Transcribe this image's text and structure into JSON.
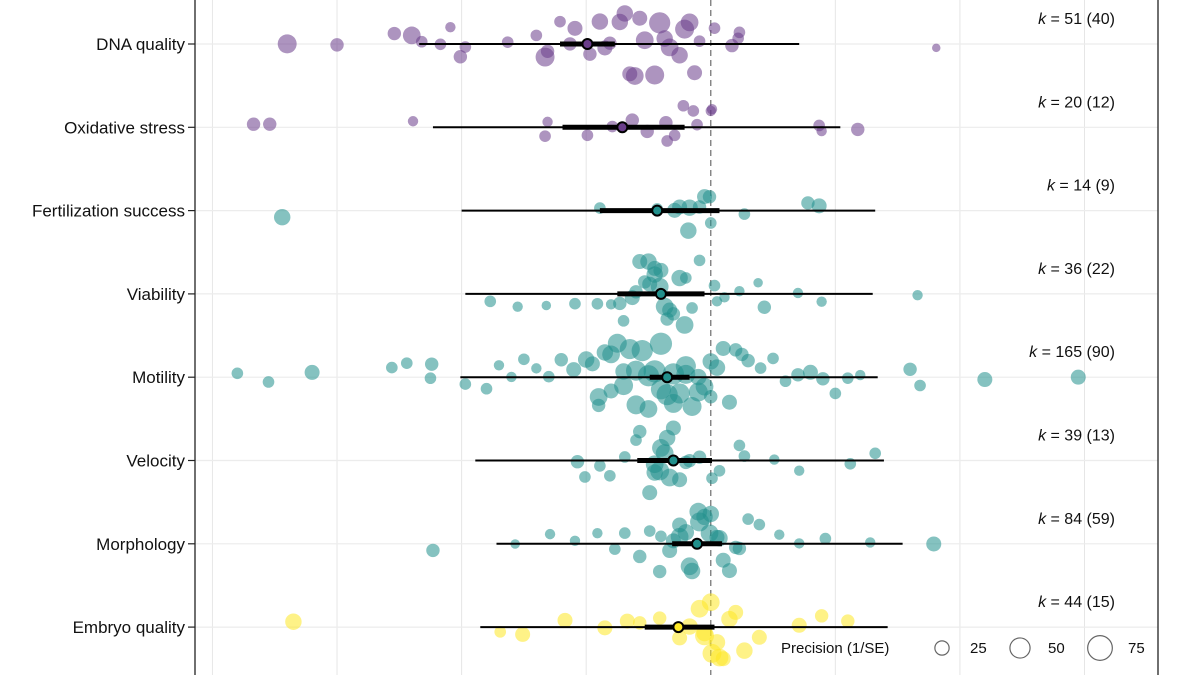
{
  "chart_data": {
    "type": "scatter",
    "subtype": "orchard",
    "title": "",
    "xlabel": "",
    "ylabel": "",
    "xlim": [
      -4.14,
      3.59
    ],
    "grid": true,
    "reference_line": 0,
    "legend": {
      "title": "Precision (1/SE)",
      "values": [
        25,
        50,
        75
      ],
      "placement": "bottom-right"
    },
    "colors": {
      "purple": "#6a3d8a",
      "teal": "#21908c",
      "yellow": "#fde725"
    },
    "groups": [
      {
        "name": "DNA quality",
        "k_label": "k = 51 (40)",
        "k": "k",
        "k_rest": " = 51 (40)",
        "color": "#6a3d8a",
        "estimate": -0.99,
        "ci": [
          -1.21,
          -0.77
        ],
        "pi": [
          -2.34,
          0.71
        ],
        "points": [
          [
            -3.4,
            40
          ],
          [
            -3.0,
            20
          ],
          [
            -2.54,
            20
          ],
          [
            -2.4,
            35
          ],
          [
            -2.32,
            15
          ],
          [
            -2.17,
            15
          ],
          [
            -2.09,
            12
          ],
          [
            -2.01,
            20
          ],
          [
            -1.97,
            15
          ],
          [
            -1.63,
            15
          ],
          [
            -1.4,
            15
          ],
          [
            -1.33,
            40
          ],
          [
            -1.31,
            20
          ],
          [
            -1.21,
            15
          ],
          [
            -1.13,
            20
          ],
          [
            -1.09,
            25
          ],
          [
            -0.97,
            20
          ],
          [
            -0.89,
            30
          ],
          [
            -0.85,
            25
          ],
          [
            -0.81,
            20
          ],
          [
            -0.73,
            30
          ],
          [
            -0.69,
            30
          ],
          [
            -0.65,
            25
          ],
          [
            -0.61,
            35
          ],
          [
            -0.57,
            25
          ],
          [
            -0.53,
            35
          ],
          [
            -0.45,
            40
          ],
          [
            -0.41,
            50
          ],
          [
            -0.37,
            30
          ],
          [
            -0.33,
            35
          ],
          [
            -0.25,
            30
          ],
          [
            -0.21,
            40
          ],
          [
            -0.17,
            35
          ],
          [
            -0.13,
            25
          ],
          [
            -0.09,
            15
          ],
          [
            0.03,
            15
          ],
          [
            0.17,
            20
          ],
          [
            0.22,
            15
          ],
          [
            0.23,
            15
          ],
          [
            1.81,
            8
          ]
        ]
      },
      {
        "name": "Oxidative stress",
        "k_label": "k = 20 (12)",
        "k": "k",
        "k_rest": " = 20 (12)",
        "color": "#6a3d8a",
        "estimate": -0.71,
        "ci": [
          -1.19,
          -0.21
        ],
        "pi": [
          -2.23,
          1.04
        ],
        "points": [
          [
            -3.67,
            20
          ],
          [
            -3.54,
            20
          ],
          [
            -2.39,
            12
          ],
          [
            -1.33,
            15
          ],
          [
            -1.31,
            12
          ],
          [
            -0.99,
            15
          ],
          [
            -0.79,
            15
          ],
          [
            -0.63,
            20
          ],
          [
            -0.51,
            20
          ],
          [
            -0.36,
            20
          ],
          [
            -0.35,
            15
          ],
          [
            -0.29,
            15
          ],
          [
            -0.22,
            15
          ],
          [
            -0.14,
            15
          ],
          [
            -0.11,
            15
          ],
          [
            0,
            12
          ],
          [
            0.01,
            12
          ],
          [
            0.87,
            15
          ],
          [
            0.89,
            12
          ],
          [
            1.18,
            20
          ]
        ]
      },
      {
        "name": "Fertilization success",
        "k_label": "k = 14 (9)",
        "k": "k",
        "k_rest": " = 14 (9)",
        "color": "#21908c",
        "estimate": -0.43,
        "ci": [
          -0.89,
          0.07
        ],
        "pi": [
          -2.0,
          1.32
        ],
        "points": [
          [
            -3.44,
            30
          ],
          [
            -0.89,
            15
          ],
          [
            -0.43,
            15
          ],
          [
            -0.29,
            25
          ],
          [
            -0.25,
            25
          ],
          [
            -0.18,
            30
          ],
          [
            -0.17,
            30
          ],
          [
            -0.09,
            20
          ],
          [
            -0.05,
            25
          ],
          [
            -0.01,
            20
          ],
          [
            0.27,
            15
          ],
          [
            0.78,
            20
          ],
          [
            0.87,
            25
          ],
          [
            0.0,
            15
          ]
        ]
      },
      {
        "name": "Viability",
        "k_label": "k = 36 (22)",
        "k": "k",
        "k_rest": " = 36 (22)",
        "color": "#21908c",
        "estimate": -0.4,
        "ci": [
          -0.75,
          -0.05
        ],
        "pi": [
          -1.97,
          1.3
        ],
        "points": [
          [
            -1.77,
            15
          ],
          [
            -1.55,
            12
          ],
          [
            -1.32,
            10
          ],
          [
            -1.09,
            15
          ],
          [
            -0.91,
            15
          ],
          [
            -0.73,
            20
          ],
          [
            -0.63,
            25
          ],
          [
            -0.57,
            25
          ],
          [
            -0.53,
            20
          ],
          [
            -0.49,
            25
          ],
          [
            -0.45,
            30
          ],
          [
            -0.41,
            35
          ],
          [
            -0.37,
            35
          ],
          [
            -0.33,
            25
          ],
          [
            -0.25,
            30
          ],
          [
            -0.21,
            35
          ],
          [
            -0.09,
            15
          ],
          [
            0.03,
            15
          ],
          [
            0.11,
            12
          ],
          [
            0.23,
            12
          ],
          [
            0.38,
            10
          ],
          [
            0.43,
            20
          ],
          [
            0.7,
            12
          ],
          [
            0.89,
            12
          ],
          [
            1.66,
            12
          ],
          [
            -0.6,
            20
          ],
          [
            -0.45,
            25
          ],
          [
            -0.3,
            20
          ],
          [
            -0.7,
            15
          ],
          [
            -0.2,
            15
          ],
          [
            -0.5,
            30
          ],
          [
            -0.4,
            25
          ],
          [
            -0.15,
            15
          ],
          [
            -0.8,
            12
          ],
          [
            0.05,
            12
          ],
          [
            -0.35,
            20
          ]
        ]
      },
      {
        "name": "Motility",
        "k_label": "k = 165 (90)",
        "k": "k",
        "k_rest": " = 165 (90)",
        "color": "#21908c",
        "estimate": -0.35,
        "ci": [
          -0.49,
          -0.17
        ],
        "pi": [
          -2.01,
          1.34
        ],
        "points": [
          [
            -3.8,
            15
          ],
          [
            -3.55,
            15
          ],
          [
            -3.2,
            25
          ],
          [
            -2.56,
            15
          ],
          [
            -2.44,
            15
          ],
          [
            -2.24,
            20
          ],
          [
            -2.25,
            15
          ],
          [
            -1.97,
            15
          ],
          [
            -1.8,
            15
          ],
          [
            -1.7,
            12
          ],
          [
            -1.6,
            12
          ],
          [
            -1.5,
            15
          ],
          [
            -1.4,
            12
          ],
          [
            -1.3,
            15
          ],
          [
            -1.2,
            20
          ],
          [
            -1.1,
            25
          ],
          [
            -1.0,
            30
          ],
          [
            -0.95,
            25
          ],
          [
            -0.9,
            35
          ],
          [
            -0.85,
            30
          ],
          [
            -0.8,
            35
          ],
          [
            -0.75,
            40
          ],
          [
            -0.7,
            40
          ],
          [
            -0.65,
            45
          ],
          [
            -0.6,
            45
          ],
          [
            -0.55,
            50
          ],
          [
            -0.5,
            50
          ],
          [
            -0.45,
            55
          ],
          [
            -0.4,
            55
          ],
          [
            -0.35,
            50
          ],
          [
            -0.3,
            50
          ],
          [
            -0.25,
            45
          ],
          [
            -0.2,
            45
          ],
          [
            -0.15,
            40
          ],
          [
            -0.1,
            40
          ],
          [
            -0.05,
            35
          ],
          [
            0.0,
            30
          ],
          [
            0.05,
            30
          ],
          [
            0.1,
            25
          ],
          [
            0.15,
            25
          ],
          [
            0.2,
            20
          ],
          [
            0.25,
            20
          ],
          [
            0.3,
            20
          ],
          [
            0.4,
            15
          ],
          [
            0.5,
            15
          ],
          [
            0.6,
            15
          ],
          [
            0.7,
            20
          ],
          [
            0.8,
            25
          ],
          [
            0.9,
            20
          ],
          [
            1.0,
            15
          ],
          [
            1.1,
            15
          ],
          [
            1.2,
            12
          ],
          [
            1.6,
            20
          ],
          [
            1.68,
            15
          ],
          [
            2.2,
            25
          ],
          [
            2.95,
            25
          ],
          [
            -0.6,
            40
          ],
          [
            -0.4,
            45
          ],
          [
            -0.2,
            40
          ],
          [
            -0.5,
            35
          ],
          [
            -0.3,
            40
          ],
          [
            -0.7,
            30
          ],
          [
            -0.1,
            30
          ],
          [
            -0.8,
            25
          ],
          [
            0.0,
            20
          ],
          [
            -0.9,
            20
          ]
        ]
      },
      {
        "name": "Velocity",
        "k_label": "k = 39 (13)",
        "k": "k",
        "k_rest": " = 39 (13)",
        "color": "#21908c",
        "estimate": -0.3,
        "ci": [
          -0.59,
          0.01
        ],
        "pi": [
          -1.89,
          1.39
        ],
        "points": [
          [
            -1.07,
            20
          ],
          [
            -1.01,
            15
          ],
          [
            -0.89,
            15
          ],
          [
            -0.81,
            15
          ],
          [
            -0.69,
            15
          ],
          [
            -0.57,
            20
          ],
          [
            -0.49,
            25
          ],
          [
            -0.45,
            35
          ],
          [
            -0.41,
            40
          ],
          [
            -0.37,
            35
          ],
          [
            -0.33,
            35
          ],
          [
            -0.25,
            25
          ],
          [
            -0.17,
            20
          ],
          [
            -0.09,
            20
          ],
          [
            0.01,
            15
          ],
          [
            0.07,
            15
          ],
          [
            0.23,
            15
          ],
          [
            0.27,
            15
          ],
          [
            0.51,
            12
          ],
          [
            0.71,
            12
          ],
          [
            1.12,
            15
          ],
          [
            1.32,
            15
          ],
          [
            -0.45,
            30
          ],
          [
            -0.35,
            30
          ],
          [
            -0.6,
            15
          ],
          [
            -0.2,
            20
          ],
          [
            -0.4,
            35
          ],
          [
            -0.3,
            25
          ]
        ]
      },
      {
        "name": "Morphology",
        "k_label": "k = 84 (59)",
        "k": "k",
        "k_rest": " = 84 (59)",
        "color": "#21908c",
        "estimate": -0.11,
        "ci": [
          -0.31,
          0.09
        ],
        "pi": [
          -1.72,
          1.54
        ],
        "points": [
          [
            -2.23,
            20
          ],
          [
            -1.57,
            10
          ],
          [
            -1.29,
            12
          ],
          [
            -1.09,
            12
          ],
          [
            -0.91,
            12
          ],
          [
            -0.77,
            15
          ],
          [
            -0.69,
            15
          ],
          [
            -0.57,
            20
          ],
          [
            -0.49,
            15
          ],
          [
            -0.41,
            20
          ],
          [
            -0.33,
            25
          ],
          [
            -0.25,
            35
          ],
          [
            -0.17,
            35
          ],
          [
            -0.09,
            40
          ],
          [
            -0.01,
            35
          ],
          [
            0.07,
            30
          ],
          [
            0.15,
            25
          ],
          [
            0.23,
            20
          ],
          [
            0.39,
            15
          ],
          [
            0.55,
            12
          ],
          [
            0.71,
            12
          ],
          [
            0.92,
            15
          ],
          [
            1.28,
            12
          ],
          [
            1.79,
            25
          ],
          [
            -0.2,
            30
          ],
          [
            -0.1,
            35
          ],
          [
            0.0,
            30
          ],
          [
            0.1,
            25
          ],
          [
            -0.3,
            25
          ],
          [
            0.2,
            20
          ],
          [
            -0.15,
            30
          ],
          [
            -0.05,
            30
          ],
          [
            0.05,
            25
          ],
          [
            -0.25,
            25
          ],
          [
            -0.4,
            15
          ],
          [
            0.3,
            15
          ]
        ]
      },
      {
        "name": "Embryo quality",
        "k_label": "k = 44 (15)",
        "k": "k",
        "k_rest": " = 44 (15)",
        "color": "#fde725",
        "estimate": -0.26,
        "ci": [
          -0.53,
          0.03
        ],
        "pi": [
          -1.85,
          1.42
        ],
        "points": [
          [
            -3.35,
            30
          ],
          [
            -1.69,
            15
          ],
          [
            -1.51,
            25
          ],
          [
            -1.17,
            25
          ],
          [
            -0.85,
            25
          ],
          [
            -0.67,
            25
          ],
          [
            -0.57,
            20
          ],
          [
            -0.41,
            20
          ],
          [
            -0.25,
            25
          ],
          [
            -0.17,
            30
          ],
          [
            -0.09,
            35
          ],
          [
            -0.05,
            40
          ],
          [
            0.01,
            40
          ],
          [
            0.07,
            35
          ],
          [
            0.15,
            30
          ],
          [
            0.27,
            30
          ],
          [
            0.39,
            25
          ],
          [
            0.71,
            25
          ],
          [
            0.89,
            20
          ],
          [
            1.1,
            20
          ],
          [
            0.0,
            35
          ],
          [
            0.05,
            30
          ],
          [
            -0.05,
            30
          ],
          [
            0.1,
            25
          ],
          [
            0.2,
            25
          ]
        ]
      }
    ]
  }
}
